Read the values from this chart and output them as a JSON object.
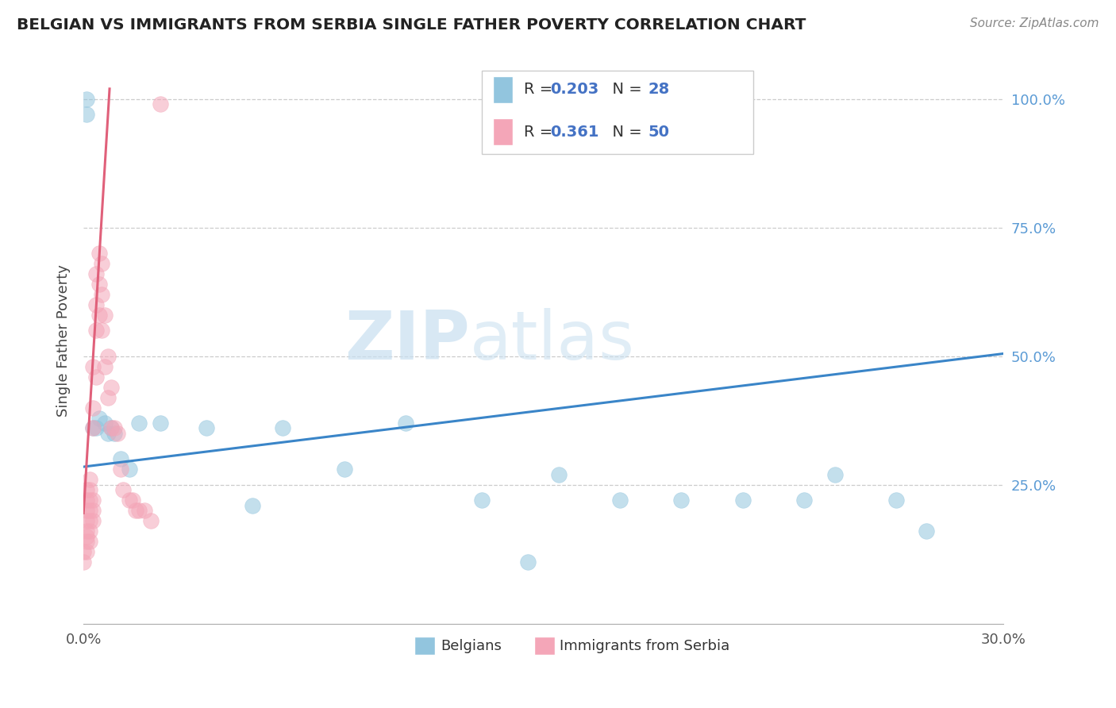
{
  "title": "BELGIAN VS IMMIGRANTS FROM SERBIA SINGLE FATHER POVERTY CORRELATION CHART",
  "source": "Source: ZipAtlas.com",
  "ylabel": "Single Father Poverty",
  "xlim": [
    0.0,
    0.3
  ],
  "ylim": [
    -0.02,
    1.08
  ],
  "ytick_positions": [
    0.0,
    0.25,
    0.5,
    0.75,
    1.0
  ],
  "ytick_labels": [
    "",
    "25.0%",
    "50.0%",
    "75.0%",
    "100.0%"
  ],
  "belgian_R": 0.203,
  "belgian_N": 28,
  "serbia_R": 0.361,
  "serbia_N": 50,
  "blue_color": "#92c5de",
  "pink_color": "#f4a6b8",
  "blue_line_color": "#3a85c8",
  "pink_line_color": "#e0607a",
  "pink_line_dash": [
    6,
    4
  ],
  "watermark_zip": "ZIP",
  "watermark_atlas": "atlas",
  "legend_labels": [
    "Belgians",
    "Immigrants from Serbia"
  ],
  "belgian_x": [
    0.001,
    0.001,
    0.003,
    0.004,
    0.005,
    0.007,
    0.008,
    0.009,
    0.01,
    0.012,
    0.015,
    0.018,
    0.025,
    0.04,
    0.055,
    0.065,
    0.085,
    0.105,
    0.13,
    0.155,
    0.175,
    0.195,
    0.215,
    0.235,
    0.245,
    0.265,
    0.275,
    0.145
  ],
  "belgian_y": [
    0.97,
    1.0,
    0.36,
    0.36,
    0.38,
    0.37,
    0.35,
    0.36,
    0.35,
    0.3,
    0.28,
    0.37,
    0.37,
    0.36,
    0.21,
    0.36,
    0.28,
    0.37,
    0.22,
    0.27,
    0.22,
    0.22,
    0.22,
    0.22,
    0.27,
    0.22,
    0.16,
    0.1
  ],
  "serbian_x": [
    0.0,
    0.0,
    0.001,
    0.001,
    0.001,
    0.001,
    0.001,
    0.001,
    0.001,
    0.001,
    0.002,
    0.002,
    0.002,
    0.002,
    0.002,
    0.002,
    0.002,
    0.003,
    0.003,
    0.003,
    0.003,
    0.003,
    0.003,
    0.004,
    0.004,
    0.004,
    0.004,
    0.005,
    0.005,
    0.005,
    0.006,
    0.006,
    0.006,
    0.007,
    0.007,
    0.008,
    0.008,
    0.009,
    0.009,
    0.01,
    0.011,
    0.012,
    0.013,
    0.015,
    0.016,
    0.017,
    0.018,
    0.02,
    0.022,
    0.025
  ],
  "serbian_y": [
    0.1,
    0.12,
    0.12,
    0.14,
    0.15,
    0.16,
    0.18,
    0.2,
    0.22,
    0.24,
    0.14,
    0.16,
    0.18,
    0.2,
    0.22,
    0.24,
    0.26,
    0.18,
    0.2,
    0.22,
    0.36,
    0.4,
    0.48,
    0.46,
    0.55,
    0.6,
    0.66,
    0.58,
    0.64,
    0.7,
    0.55,
    0.62,
    0.68,
    0.48,
    0.58,
    0.42,
    0.5,
    0.36,
    0.44,
    0.36,
    0.35,
    0.28,
    0.24,
    0.22,
    0.22,
    0.2,
    0.2,
    0.2,
    0.18,
    0.99
  ],
  "bel_line_x": [
    0.0,
    0.3
  ],
  "bel_line_y": [
    0.285,
    0.505
  ],
  "ser_line_x": [
    0.0,
    0.0085
  ],
  "ser_line_y": [
    0.195,
    1.02
  ]
}
